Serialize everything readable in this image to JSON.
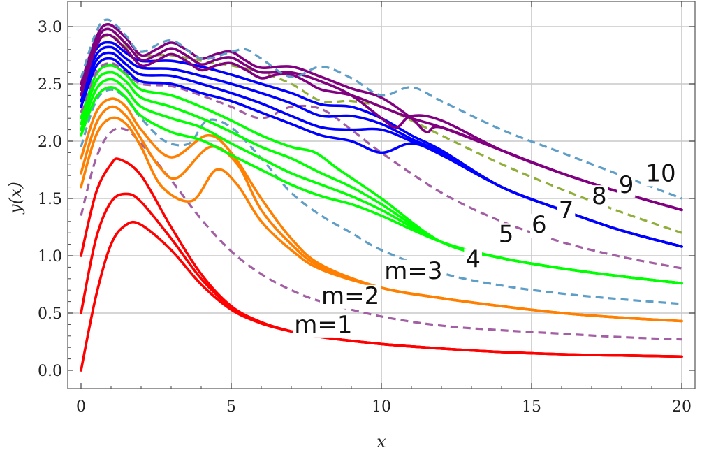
{
  "chart_data": {
    "type": "line",
    "title": "",
    "xlabel": "x",
    "ylabel": "y(x)",
    "xlim": [
      0,
      20
    ],
    "ylim": [
      0,
      3.1
    ],
    "xticks": [
      0,
      5,
      10,
      15,
      20
    ],
    "yticks": [
      0.0,
      0.5,
      1.0,
      1.5,
      2.0,
      2.5,
      3.0
    ],
    "ytick_labels": [
      "0.0",
      "0.5",
      "1.0",
      "1.5",
      "2.0",
      "2.5",
      "3.0"
    ],
    "grid": true,
    "legend": "none",
    "curve_labels": [
      {
        "text": "m=1",
        "x": 7.1,
        "y": 0.33
      },
      {
        "text": "m=2",
        "x": 8.0,
        "y": 0.58
      },
      {
        "text": "m=3",
        "x": 10.1,
        "y": 0.8
      },
      {
        "text": "4",
        "x": 12.8,
        "y": 0.9
      },
      {
        "text": "5",
        "x": 13.9,
        "y": 1.12
      },
      {
        "text": "6",
        "x": 15.0,
        "y": 1.2
      },
      {
        "text": "7",
        "x": 15.9,
        "y": 1.33
      },
      {
        "text": "8",
        "x": 17.0,
        "y": 1.45
      },
      {
        "text": "9",
        "x": 17.9,
        "y": 1.55
      },
      {
        "text": "10",
        "x": 18.8,
        "y": 1.65
      }
    ],
    "colors": {
      "m1": "#ff0000",
      "m2": "#ff8000",
      "m3": "#00ff00",
      "m4": "#0000ff",
      "m5": "#800080",
      "dashed_purple": "#a35fa3",
      "dashed_blue": "#5f9ec6",
      "dashed_olive": "#8faf3a"
    },
    "series": [
      {
        "style": "solid",
        "color": "#ff0000",
        "x": [
          0,
          0.5,
          1,
          1.5,
          2,
          3,
          4,
          5,
          6,
          7,
          8,
          10,
          12,
          14,
          16,
          18,
          20
        ],
        "y": [
          0.0,
          0.65,
          1.1,
          1.27,
          1.27,
          1.05,
          0.75,
          0.53,
          0.41,
          0.34,
          0.29,
          0.23,
          0.19,
          0.16,
          0.14,
          0.13,
          0.12
        ]
      },
      {
        "style": "solid",
        "color": "#ff0000",
        "x": [
          0,
          0.5,
          1,
          1.5,
          2,
          3,
          4,
          5,
          6,
          7,
          8,
          10,
          12,
          14,
          16,
          18,
          20
        ],
        "y": [
          0.5,
          1.15,
          1.47,
          1.54,
          1.47,
          1.15,
          0.8,
          0.55,
          0.42,
          0.34,
          0.29,
          0.23,
          0.19,
          0.16,
          0.14,
          0.13,
          0.12
        ]
      },
      {
        "style": "solid",
        "color": "#ff0000",
        "x": [
          0,
          0.5,
          1,
          1.3,
          2,
          3,
          4,
          5,
          6,
          7,
          8,
          10,
          12,
          14,
          16,
          18,
          20
        ],
        "y": [
          1.0,
          1.55,
          1.8,
          1.84,
          1.7,
          1.25,
          0.84,
          0.56,
          0.42,
          0.34,
          0.29,
          0.23,
          0.19,
          0.16,
          0.14,
          0.13,
          0.12
        ]
      },
      {
        "style": "dashed",
        "color": "#a35fa3",
        "x": [
          0,
          0.5,
          1,
          1.5,
          2,
          3,
          4,
          5,
          6,
          7,
          8,
          10,
          12,
          14,
          16,
          18,
          20
        ],
        "y": [
          1.35,
          1.85,
          2.08,
          2.1,
          1.98,
          1.66,
          1.32,
          1.04,
          0.84,
          0.7,
          0.6,
          0.47,
          0.39,
          0.35,
          0.32,
          0.29,
          0.27
        ]
      },
      {
        "style": "solid",
        "color": "#ff8000",
        "x": [
          0,
          0.5,
          1,
          1.5,
          2,
          2.7,
          3.7,
          4.5,
          5.2,
          6,
          7,
          8,
          10,
          12,
          14,
          16,
          18,
          20
        ],
        "y": [
          1.6,
          2.05,
          2.2,
          2.15,
          1.95,
          1.6,
          1.48,
          1.75,
          1.62,
          1.3,
          1.05,
          0.88,
          0.72,
          0.63,
          0.56,
          0.5,
          0.46,
          0.43
        ]
      },
      {
        "style": "solid",
        "color": "#ff8000",
        "x": [
          0,
          0.5,
          1,
          1.5,
          2,
          2.6,
          3.2,
          4.3,
          5.2,
          6,
          7,
          8,
          10,
          12,
          14,
          16,
          18,
          20
        ],
        "y": [
          1.72,
          2.15,
          2.3,
          2.22,
          2.02,
          1.78,
          1.68,
          1.95,
          1.8,
          1.4,
          1.1,
          0.9,
          0.72,
          0.63,
          0.56,
          0.5,
          0.46,
          0.43
        ]
      },
      {
        "style": "solid",
        "color": "#ff8000",
        "x": [
          0,
          0.5,
          1,
          1.5,
          2,
          3,
          4.2,
          5,
          6,
          7,
          8,
          10,
          12,
          14,
          16,
          18,
          20
        ],
        "y": [
          1.85,
          2.25,
          2.37,
          2.3,
          2.1,
          1.86,
          2.05,
          1.9,
          1.5,
          1.15,
          0.92,
          0.72,
          0.63,
          0.56,
          0.5,
          0.46,
          0.43
        ]
      },
      {
        "style": "dashed",
        "color": "#5f9ec6",
        "x": [
          0,
          0.5,
          1,
          1.5,
          2,
          2.8,
          3.6,
          4.2,
          5,
          6,
          7,
          8,
          9,
          10,
          12,
          14,
          16,
          18,
          20
        ],
        "y": [
          1.95,
          2.35,
          2.45,
          2.37,
          2.2,
          2.0,
          1.98,
          2.18,
          2.12,
          1.85,
          1.55,
          1.35,
          1.2,
          1.05,
          0.85,
          0.74,
          0.67,
          0.62,
          0.58
        ]
      },
      {
        "style": "solid",
        "color": "#00ff00",
        "x": [
          0,
          0.5,
          1,
          1.5,
          2,
          3,
          4,
          5,
          6,
          7,
          8,
          9,
          10,
          12,
          14,
          16,
          18,
          20
        ],
        "y": [
          2.05,
          2.38,
          2.47,
          2.38,
          2.22,
          2.08,
          2.01,
          1.88,
          1.75,
          1.62,
          1.52,
          1.45,
          1.35,
          1.12,
          0.98,
          0.89,
          0.82,
          0.76
        ]
      },
      {
        "style": "solid",
        "color": "#00ff00",
        "x": [
          0,
          0.5,
          1,
          1.5,
          2,
          3,
          4,
          5,
          6,
          7,
          8,
          9,
          10,
          12,
          14,
          16,
          18,
          20
        ],
        "y": [
          2.1,
          2.45,
          2.54,
          2.45,
          2.3,
          2.2,
          2.12,
          1.98,
          1.85,
          1.72,
          1.62,
          1.52,
          1.4,
          1.12,
          0.98,
          0.89,
          0.82,
          0.76
        ]
      },
      {
        "style": "solid",
        "color": "#00ff00",
        "x": [
          0,
          0.5,
          1,
          1.5,
          2,
          3,
          4,
          5,
          6,
          7,
          8,
          9,
          10,
          12,
          14,
          16,
          18,
          20
        ],
        "y": [
          2.15,
          2.52,
          2.6,
          2.52,
          2.38,
          2.3,
          2.2,
          2.08,
          1.95,
          1.85,
          1.72,
          1.6,
          1.45,
          1.12,
          0.98,
          0.89,
          0.82,
          0.76
        ]
      },
      {
        "style": "solid",
        "color": "#00ff00",
        "x": [
          0,
          0.5,
          1,
          1.5,
          2,
          3,
          4,
          5,
          6,
          7,
          7.8,
          8.6,
          10,
          12,
          14,
          16,
          18,
          20
        ],
        "y": [
          2.2,
          2.58,
          2.66,
          2.58,
          2.45,
          2.4,
          2.3,
          2.18,
          2.05,
          1.95,
          1.9,
          1.75,
          1.5,
          1.12,
          0.98,
          0.89,
          0.82,
          0.76
        ]
      },
      {
        "style": "dashed",
        "color": "#a35fa3",
        "x": [
          0,
          0.5,
          1,
          1.5,
          2,
          3,
          4,
          5,
          6,
          7,
          8,
          9,
          10,
          12,
          14,
          16,
          18,
          20
        ],
        "y": [
          2.25,
          2.6,
          2.68,
          2.6,
          2.5,
          2.48,
          2.4,
          2.3,
          2.2,
          2.3,
          2.28,
          2.1,
          1.9,
          1.55,
          1.3,
          1.12,
          0.99,
          0.89
        ]
      },
      {
        "style": "solid",
        "color": "#0000ff",
        "x": [
          0,
          0.5,
          1,
          1.5,
          2,
          3,
          4,
          5,
          6,
          7,
          8,
          9,
          10,
          11,
          12,
          14,
          16,
          18,
          20
        ],
        "y": [
          2.3,
          2.65,
          2.72,
          2.62,
          2.52,
          2.5,
          2.42,
          2.35,
          2.25,
          2.15,
          2.05,
          2.0,
          1.9,
          1.98,
          1.88,
          1.6,
          1.4,
          1.22,
          1.08
        ]
      },
      {
        "style": "solid",
        "color": "#0000ff",
        "x": [
          0,
          0.5,
          1,
          1.5,
          2,
          3,
          4,
          5,
          6,
          7,
          8,
          9,
          10,
          11,
          12,
          14,
          16,
          18,
          20
        ],
        "y": [
          2.35,
          2.7,
          2.77,
          2.67,
          2.58,
          2.57,
          2.5,
          2.42,
          2.33,
          2.22,
          2.12,
          2.1,
          2.1,
          2.0,
          1.9,
          1.6,
          1.4,
          1.22,
          1.08
        ]
      },
      {
        "style": "solid",
        "color": "#0000ff",
        "x": [
          0,
          0.5,
          1,
          1.5,
          2,
          3,
          4,
          5,
          6,
          7,
          8,
          9,
          10,
          11,
          12,
          14,
          16,
          18,
          20
        ],
        "y": [
          2.4,
          2.75,
          2.82,
          2.72,
          2.64,
          2.63,
          2.57,
          2.5,
          2.42,
          2.33,
          2.22,
          2.22,
          2.15,
          2.02,
          1.9,
          1.6,
          1.4,
          1.22,
          1.08
        ]
      },
      {
        "style": "solid",
        "color": "#0000ff",
        "x": [
          0,
          0.5,
          1,
          1.5,
          2,
          3,
          4,
          5,
          6,
          7,
          8,
          9,
          10,
          11,
          12,
          14,
          16,
          18,
          20
        ],
        "y": [
          2.45,
          2.8,
          2.86,
          2.77,
          2.7,
          2.7,
          2.65,
          2.58,
          2.5,
          2.42,
          2.32,
          2.3,
          2.2,
          2.05,
          1.92,
          1.6,
          1.4,
          1.22,
          1.08
        ]
      },
      {
        "style": "dashed",
        "color": "#8faf3a",
        "x": [
          0,
          0.5,
          1,
          1.5,
          2,
          3,
          4,
          5,
          6,
          7,
          8,
          9,
          10,
          11,
          12,
          14,
          16,
          18,
          20
        ],
        "y": [
          2.5,
          2.85,
          2.92,
          2.82,
          2.75,
          2.75,
          2.7,
          2.66,
          2.6,
          2.5,
          2.35,
          2.35,
          2.3,
          2.18,
          2.05,
          1.8,
          1.58,
          1.38,
          1.2
        ]
      },
      {
        "style": "solid",
        "color": "#800080",
        "x": [
          0,
          0.5,
          0.9,
          1.5,
          2,
          2.5,
          3,
          3.5,
          4,
          4.5,
          5,
          5.5,
          6,
          6.5,
          7,
          7.5,
          8,
          9,
          10,
          11,
          12,
          14,
          16,
          18,
          20
        ],
        "y": [
          2.4,
          2.82,
          2.93,
          2.8,
          2.66,
          2.7,
          2.76,
          2.7,
          2.62,
          2.66,
          2.68,
          2.62,
          2.55,
          2.58,
          2.58,
          2.52,
          2.45,
          2.4,
          2.3,
          2.2,
          2.12,
          1.92,
          1.72,
          1.55,
          1.4
        ]
      },
      {
        "style": "solid",
        "color": "#800080",
        "x": [
          0,
          0.5,
          0.9,
          1.5,
          2,
          2.5,
          3,
          3.5,
          4,
          4.5,
          5,
          5.5,
          6,
          7,
          8,
          9,
          10,
          10.5,
          11,
          12,
          14,
          16,
          18,
          20
        ],
        "y": [
          2.45,
          2.86,
          2.98,
          2.85,
          2.71,
          2.75,
          2.81,
          2.75,
          2.67,
          2.71,
          2.73,
          2.66,
          2.6,
          2.6,
          2.52,
          2.4,
          2.2,
          2.12,
          2.22,
          2.18,
          1.92,
          1.72,
          1.55,
          1.4
        ]
      },
      {
        "style": "solid",
        "color": "#800080",
        "x": [
          0,
          0.5,
          0.9,
          1.5,
          2,
          2.5,
          3,
          3.5,
          4,
          4.5,
          5,
          5.5,
          6,
          7,
          8,
          9,
          10,
          11,
          11.5,
          12,
          14,
          16,
          18,
          20
        ],
        "y": [
          2.5,
          2.9,
          3.02,
          2.9,
          2.75,
          2.8,
          2.86,
          2.8,
          2.72,
          2.76,
          2.78,
          2.7,
          2.64,
          2.65,
          2.56,
          2.46,
          2.38,
          2.2,
          2.08,
          2.12,
          1.92,
          1.72,
          1.55,
          1.4
        ]
      },
      {
        "style": "dashed",
        "color": "#5f9ec6",
        "x": [
          0,
          0.5,
          0.9,
          1.5,
          2,
          3,
          4,
          5,
          5.5,
          6,
          7,
          8,
          9,
          10,
          11,
          12,
          14,
          16,
          18,
          20
        ],
        "y": [
          2.55,
          2.95,
          3.06,
          2.92,
          2.78,
          2.88,
          2.72,
          2.78,
          2.8,
          2.72,
          2.56,
          2.65,
          2.55,
          2.4,
          2.47,
          2.35,
          2.1,
          1.9,
          1.7,
          1.5
        ]
      }
    ]
  }
}
